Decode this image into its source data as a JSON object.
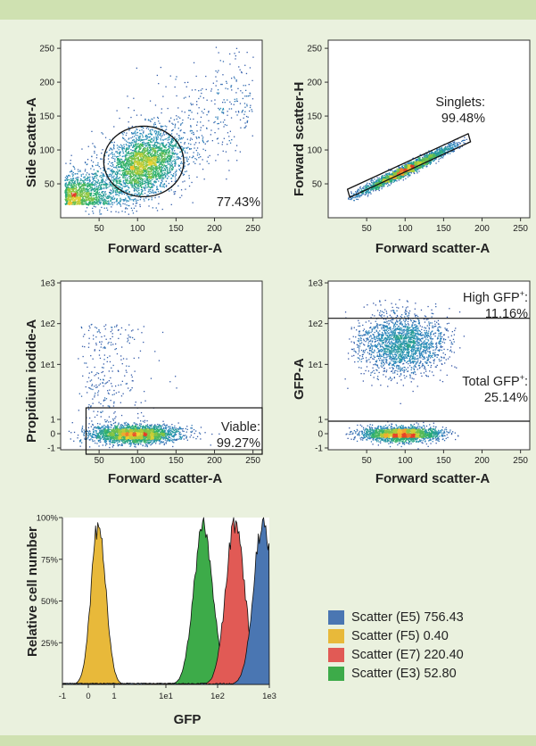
{
  "chart_data": [
    {
      "type": "scatter",
      "id": "side-vs-forward",
      "xlabel": "Forward scatter-A",
      "ylabel": "Side scatter-A",
      "xlim": [
        0,
        262
      ],
      "ylim": [
        0,
        262
      ],
      "x_ticks": [
        "50",
        "100",
        "150",
        "200",
        "250"
      ],
      "y_ticks": [
        "50",
        "100",
        "150",
        "200",
        "250"
      ],
      "gate": {
        "shape": "ellipse",
        "center": [
          108,
          83
        ],
        "radius": [
          52,
          52
        ]
      },
      "annotation": "77.43%"
    },
    {
      "type": "scatter",
      "id": "fsch-vs-fsca",
      "xlabel": "Forward scatter-A",
      "ylabel": "Forward scatter-H",
      "xlim": [
        0,
        262
      ],
      "ylim": [
        0,
        262
      ],
      "x_ticks": [
        "50",
        "100",
        "150",
        "200",
        "250"
      ],
      "y_ticks": [
        "50",
        "100",
        "150",
        "200",
        "250"
      ],
      "gate": {
        "shape": "polygon",
        "points": [
          [
            28,
            30
          ],
          [
            185,
            112
          ],
          [
            182,
            124
          ],
          [
            25,
            42
          ]
        ]
      },
      "annotation_lines": [
        "Singlets:",
        "99.48%"
      ]
    },
    {
      "type": "scatter",
      "id": "pi-vs-fsca",
      "xlabel": "Forward scatter-A",
      "ylabel": "Propidium iodide-A",
      "xlim": [
        0,
        262
      ],
      "x_ticks": [
        "50",
        "100",
        "150",
        "200",
        "250"
      ],
      "y_ticks": [
        "1e3",
        "1e2",
        "1e1",
        "1",
        "0",
        "-1"
      ],
      "gate": {
        "shape": "rectangle",
        "x": [
          33,
          262
        ],
        "y_level": [
          "-1",
          "1"
        ]
      },
      "annotation_lines": [
        "Viable:",
        "99.27%"
      ]
    },
    {
      "type": "scatter",
      "id": "gfp-vs-fsca",
      "xlabel": "Forward scatter-A",
      "ylabel": "GFP-A",
      "xlim": [
        0,
        262
      ],
      "x_ticks": [
        "50",
        "100",
        "150",
        "200",
        "250"
      ],
      "y_ticks": [
        "1e3",
        "1e2",
        "1e1",
        "1",
        "0",
        "-1"
      ],
      "gates": [
        {
          "name": "High GFP+",
          "threshold": "1e2",
          "value": "11.16%"
        },
        {
          "name": "Total GFP+",
          "threshold": "1",
          "value": "25.14%"
        }
      ],
      "annotations": [
        {
          "label": "High GFP",
          "sup": "+",
          "suffix": ":",
          "value": "11.16%"
        },
        {
          "label": "Total GFP",
          "sup": "+",
          "suffix": ":",
          "value": "25.14%"
        }
      ]
    },
    {
      "type": "area",
      "id": "gfp-histogram",
      "xlabel": "GFP",
      "ylabel": "Relative cell number",
      "x_ticks": [
        "-1",
        "0",
        "1",
        "1e1",
        "1e2",
        "1e3"
      ],
      "y_ticks": [
        "100%",
        "75%",
        "50%",
        "25%"
      ],
      "ylim": [
        0,
        100
      ],
      "series": [
        {
          "name": "Scatter (E5) 756.43",
          "color": "#4a76b2",
          "peak_gfp": 756.43
        },
        {
          "name": "Scatter (F5) 0.40",
          "color": "#e8b93a",
          "peak_gfp": 0.4
        },
        {
          "name": "Scatter (E7) 220.40",
          "color": "#e15a55",
          "peak_gfp": 220.4
        },
        {
          "name": "Scatter (E3) 52.80",
          "color": "#3dab49",
          "peak_gfp": 52.8
        }
      ]
    }
  ]
}
